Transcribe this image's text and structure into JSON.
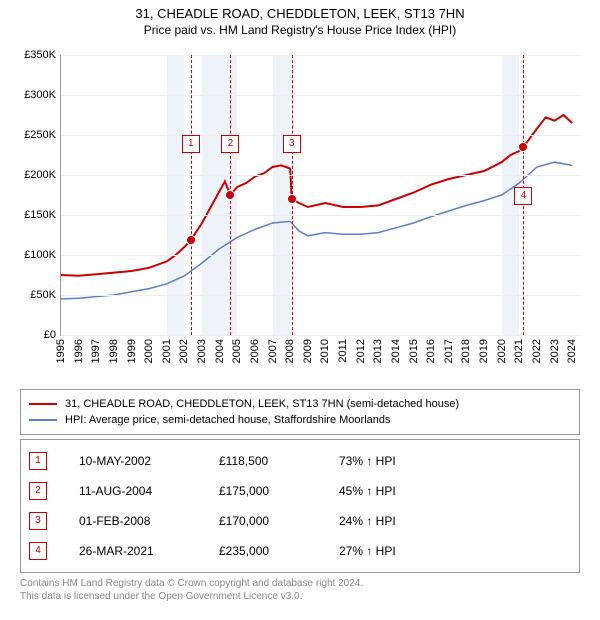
{
  "title": "31, CHEADLE ROAD, CHEDDLETON, LEEK, ST13 7HN",
  "subtitle": "Price paid vs. HM Land Registry's House Price Index (HPI)",
  "chart": {
    "type": "line",
    "background_color": "#ffffff",
    "grid_color": "#eeeeee",
    "band_color": "#eef3fa",
    "marker_color": "#cc0000",
    "x_range": [
      1995,
      2024.5
    ],
    "y_range": [
      0,
      350
    ],
    "y_ticks": [
      0,
      50,
      100,
      150,
      200,
      250,
      300,
      350
    ],
    "y_tick_labels": [
      "£0",
      "£50K",
      "£100K",
      "£150K",
      "£200K",
      "£250K",
      "£300K",
      "£350K"
    ],
    "x_ticks": [
      1995,
      1996,
      1997,
      1998,
      1999,
      2000,
      2001,
      2002,
      2003,
      2004,
      2005,
      2006,
      2007,
      2008,
      2009,
      2010,
      2011,
      2012,
      2013,
      2014,
      2015,
      2016,
      2017,
      2018,
      2019,
      2020,
      2021,
      2022,
      2023,
      2024
    ],
    "bands": [
      [
        2001,
        2002
      ],
      [
        2003,
        2005
      ],
      [
        2007,
        2008
      ],
      [
        2020,
        2021
      ]
    ],
    "series": [
      {
        "name": "31, CHEADLE ROAD, CHEDDLETON, LEEK, ST13 7HN (semi-detached house)",
        "color": "#cc0000",
        "width": 2,
        "data": [
          [
            1995,
            75
          ],
          [
            1996,
            74
          ],
          [
            1997,
            76
          ],
          [
            1998,
            78
          ],
          [
            1999,
            80
          ],
          [
            2000,
            84
          ],
          [
            2001,
            92
          ],
          [
            2001.5,
            100
          ],
          [
            2002,
            110
          ],
          [
            2002.36,
            118.5
          ],
          [
            2003,
            140
          ],
          [
            2003.5,
            160
          ],
          [
            2004,
            180
          ],
          [
            2004.3,
            192
          ],
          [
            2004.6,
            175
          ],
          [
            2005,
            185
          ],
          [
            2005.5,
            190
          ],
          [
            2006,
            198
          ],
          [
            2006.5,
            202
          ],
          [
            2007,
            210
          ],
          [
            2007.5,
            212
          ],
          [
            2008,
            208
          ],
          [
            2008.09,
            170
          ],
          [
            2008.5,
            165
          ],
          [
            2009,
            160
          ],
          [
            2010,
            165
          ],
          [
            2011,
            160
          ],
          [
            2012,
            160
          ],
          [
            2013,
            162
          ],
          [
            2014,
            170
          ],
          [
            2015,
            178
          ],
          [
            2016,
            188
          ],
          [
            2017,
            195
          ],
          [
            2018,
            200
          ],
          [
            2019,
            205
          ],
          [
            2020,
            216
          ],
          [
            2020.5,
            225
          ],
          [
            2021,
            230
          ],
          [
            2021.23,
            235
          ],
          [
            2022,
            258
          ],
          [
            2022.5,
            272
          ],
          [
            2023,
            268
          ],
          [
            2023.5,
            275
          ],
          [
            2024,
            265
          ]
        ]
      },
      {
        "name": "HPI: Average price, semi-detached house, Staffordshire Moorlands",
        "color": "#5b7fc7",
        "width": 1.5,
        "data": [
          [
            1995,
            45
          ],
          [
            1996,
            46
          ],
          [
            1997,
            48
          ],
          [
            1998,
            50
          ],
          [
            1999,
            54
          ],
          [
            2000,
            58
          ],
          [
            2001,
            64
          ],
          [
            2002,
            74
          ],
          [
            2003,
            90
          ],
          [
            2004,
            108
          ],
          [
            2005,
            122
          ],
          [
            2006,
            132
          ],
          [
            2007,
            140
          ],
          [
            2008,
            142
          ],
          [
            2008.5,
            130
          ],
          [
            2009,
            124
          ],
          [
            2010,
            128
          ],
          [
            2011,
            126
          ],
          [
            2012,
            126
          ],
          [
            2013,
            128
          ],
          [
            2014,
            134
          ],
          [
            2015,
            140
          ],
          [
            2016,
            148
          ],
          [
            2017,
            155
          ],
          [
            2018,
            162
          ],
          [
            2019,
            168
          ],
          [
            2020,
            175
          ],
          [
            2021,
            190
          ],
          [
            2022,
            210
          ],
          [
            2023,
            216
          ],
          [
            2024,
            212
          ]
        ]
      }
    ],
    "markers": [
      {
        "num": "1",
        "x": 2002.36,
        "y": 118.5,
        "box_y": 80
      },
      {
        "num": "2",
        "x": 2004.61,
        "y": 175,
        "box_y": 80
      },
      {
        "num": "3",
        "x": 2008.09,
        "y": 170,
        "box_y": 80
      },
      {
        "num": "4",
        "x": 2021.23,
        "y": 235,
        "box_y": 132
      }
    ]
  },
  "legend": [
    {
      "color": "#cc0000",
      "label": "31, CHEADLE ROAD, CHEDDLETON, LEEK, ST13 7HN (semi-detached house)"
    },
    {
      "color": "#5b7fc7",
      "label": "HPI: Average price, semi-detached house, Staffordshire Moorlands"
    }
  ],
  "events": [
    {
      "num": "1",
      "date": "10-MAY-2002",
      "price": "£118,500",
      "hpi": "73% ↑ HPI"
    },
    {
      "num": "2",
      "date": "11-AUG-2004",
      "price": "£175,000",
      "hpi": "45% ↑ HPI"
    },
    {
      "num": "3",
      "date": "01-FEB-2008",
      "price": "£170,000",
      "hpi": "24% ↑ HPI"
    },
    {
      "num": "4",
      "date": "26-MAR-2021",
      "price": "£235,000",
      "hpi": "27% ↑ HPI"
    }
  ],
  "footer_line1": "Contains HM Land Registry data © Crown copyright and database right 2024.",
  "footer_line2": "This data is licensed under the Open Government Licence v3.0."
}
